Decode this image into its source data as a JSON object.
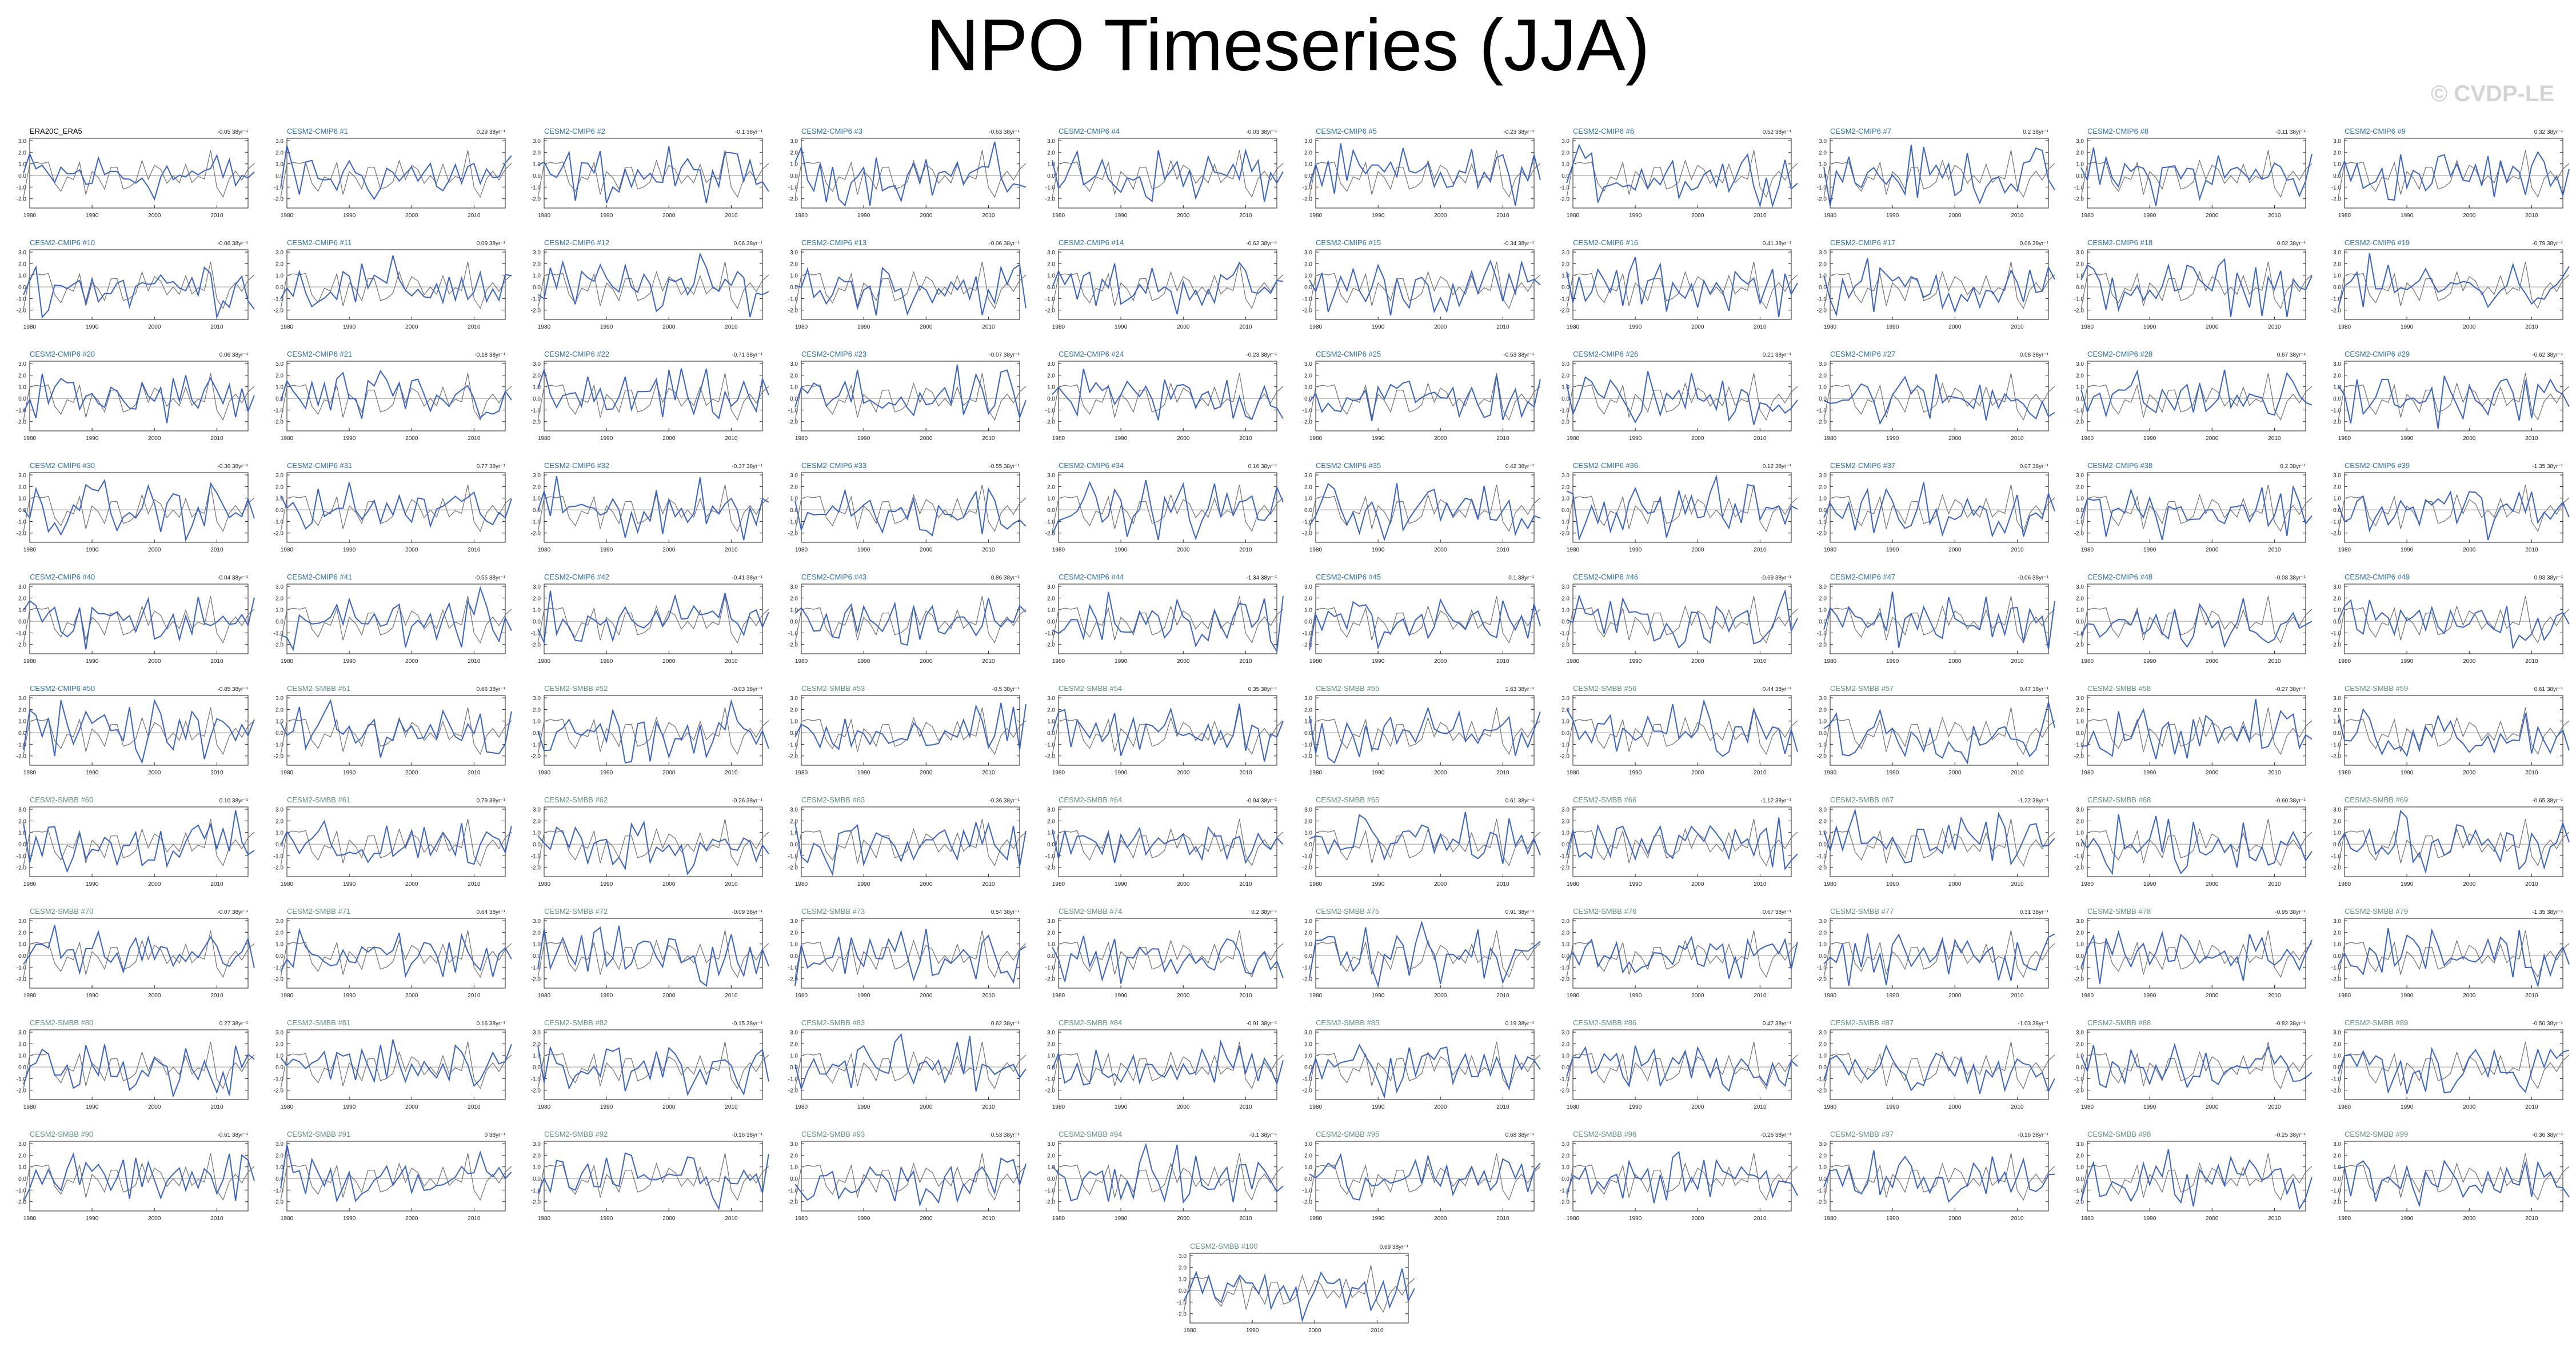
{
  "page": {
    "title": "NPO Timeseries (JJA)",
    "watermark": "© CVDP-LE"
  },
  "style": {
    "model_color": "#3a63c8",
    "obs_color": "#6e6e6e",
    "cmip6_label_color": "#2a6fb0",
    "smbb_label_color": "#5f8f88",
    "obs_label_color": "#000000"
  },
  "chart_data": {
    "type": "line",
    "xlim": [
      1980,
      2015
    ],
    "x_ticks": [
      "1980",
      "1990",
      "2000",
      "2010"
    ],
    "y_ticks": [
      "-2.0",
      "-1.0",
      "0.0",
      "1.0",
      "2.0",
      "3.0"
    ],
    "grid": false,
    "panels": [
      {
        "label": "ERA20C_ERA5",
        "trend": "-0.05 38yr⁻¹",
        "group": "obs"
      },
      {
        "label": "CESM2-CMIP6 #1",
        "trend": "0.29 38yr⁻¹",
        "group": "cmip6"
      },
      {
        "label": "CESM2-CMIP6 #2",
        "trend": "-0.1 38yr⁻¹",
        "group": "cmip6"
      },
      {
        "label": "CESM2-CMIP6 #3",
        "trend": "-0.63 38yr⁻¹",
        "group": "cmip6"
      },
      {
        "label": "CESM2-CMIP6 #4",
        "trend": "-0.03 38yr⁻¹",
        "group": "cmip6"
      },
      {
        "label": "CESM2-CMIP6 #5",
        "trend": "-0.23 38yr⁻¹",
        "group": "cmip6"
      },
      {
        "label": "CESM2-CMIP6 #6",
        "trend": "0.52 38yr⁻¹",
        "group": "cmip6"
      },
      {
        "label": "CESM2-CMIP6 #7",
        "trend": "0.2 38yr⁻¹",
        "group": "cmip6"
      },
      {
        "label": "CESM2-CMIP6 #8",
        "trend": "-0.11 38yr⁻¹",
        "group": "cmip6"
      },
      {
        "label": "CESM2-CMIP6 #9",
        "trend": "0.32 38yr⁻¹",
        "group": "cmip6"
      },
      {
        "label": "CESM2-CMIP6 #10",
        "trend": "-0.06 38yr⁻¹",
        "group": "cmip6"
      },
      {
        "label": "CESM2-CMIP6 #11",
        "trend": "0.09 38yr⁻¹",
        "group": "cmip6"
      },
      {
        "label": "CESM2-CMIP6 #12",
        "trend": "0.06 38yr⁻¹",
        "group": "cmip6"
      },
      {
        "label": "CESM2-CMIP6 #13",
        "trend": "-0.06 38yr⁻¹",
        "group": "cmip6"
      },
      {
        "label": "CESM2-CMIP6 #14",
        "trend": "-0.62 38yr⁻¹",
        "group": "cmip6"
      },
      {
        "label": "CESM2-CMIP6 #15",
        "trend": "-0.34 38yr⁻¹",
        "group": "cmip6"
      },
      {
        "label": "CESM2-CMIP6 #16",
        "trend": "0.41 38yr⁻¹",
        "group": "cmip6"
      },
      {
        "label": "CESM2-CMIP6 #17",
        "trend": "0.06 38yr⁻¹",
        "group": "cmip6"
      },
      {
        "label": "CESM2-CMIP6 #18",
        "trend": "0.02 38yr⁻¹",
        "group": "cmip6"
      },
      {
        "label": "CESM2-CMIP6 #19",
        "trend": "-0.79 38yr⁻¹",
        "group": "cmip6"
      },
      {
        "label": "CESM2-CMIP6 #20",
        "trend": "0.06 38yr⁻¹",
        "group": "cmip6"
      },
      {
        "label": "CESM2-CMIP6 #21",
        "trend": "-0.18 38yr⁻¹",
        "group": "cmip6"
      },
      {
        "label": "CESM2-CMIP6 #22",
        "trend": "-0.71 38yr⁻¹",
        "group": "cmip6"
      },
      {
        "label": "CESM2-CMIP6 #23",
        "trend": "-0.07 38yr⁻¹",
        "group": "cmip6"
      },
      {
        "label": "CESM2-CMIP6 #24",
        "trend": "-0.23 38yr⁻¹",
        "group": "cmip6"
      },
      {
        "label": "CESM2-CMIP6 #25",
        "trend": "-0.53 38yr⁻¹",
        "group": "cmip6"
      },
      {
        "label": "CESM2-CMIP6 #26",
        "trend": "0.21 38yr⁻¹",
        "group": "cmip6"
      },
      {
        "label": "CESM2-CMIP6 #27",
        "trend": "0.08 38yr⁻¹",
        "group": "cmip6"
      },
      {
        "label": "CESM2-CMIP6 #28",
        "trend": "0.67 38yr⁻¹",
        "group": "cmip6"
      },
      {
        "label": "CESM2-CMIP6 #29",
        "trend": "-0.62 38yr⁻¹",
        "group": "cmip6"
      },
      {
        "label": "CESM2-CMIP6 #30",
        "trend": "-0.36 38yr⁻¹",
        "group": "cmip6"
      },
      {
        "label": "CESM2-CMIP6 #31",
        "trend": "0.77 38yr⁻¹",
        "group": "cmip6"
      },
      {
        "label": "CESM2-CMIP6 #32",
        "trend": "-0.37 38yr⁻¹",
        "group": "cmip6"
      },
      {
        "label": "CESM2-CMIP6 #33",
        "trend": "-0.55 38yr⁻¹",
        "group": "cmip6"
      },
      {
        "label": "CESM2-CMIP6 #34",
        "trend": "0.16 38yr⁻¹",
        "group": "cmip6"
      },
      {
        "label": "CESM2-CMIP6 #35",
        "trend": "0.42 38yr⁻¹",
        "group": "cmip6"
      },
      {
        "label": "CESM2-CMIP6 #36",
        "trend": "0.12 38yr⁻¹",
        "group": "cmip6"
      },
      {
        "label": "CESM2-CMIP6 #37",
        "trend": "0.07 38yr⁻¹",
        "group": "cmip6"
      },
      {
        "label": "CESM2-CMIP6 #38",
        "trend": "0.2 38yr⁻¹",
        "group": "cmip6"
      },
      {
        "label": "CESM2-CMIP6 #39",
        "trend": "-1.35 38yr⁻¹",
        "group": "cmip6"
      },
      {
        "label": "CESM2-CMIP6 #40",
        "trend": "-0.04 38yr⁻¹",
        "group": "cmip6"
      },
      {
        "label": "CESM2-CMIP6 #41",
        "trend": "-0.55 38yr⁻¹",
        "group": "cmip6"
      },
      {
        "label": "CESM2-CMIP6 #42",
        "trend": "-0.41 38yr⁻¹",
        "group": "cmip6"
      },
      {
        "label": "CESM2-CMIP6 #43",
        "trend": "0.86 38yr⁻¹",
        "group": "cmip6"
      },
      {
        "label": "CESM2-CMIP6 #44",
        "trend": "-1.34 38yr⁻¹",
        "group": "cmip6"
      },
      {
        "label": "CESM2-CMIP6 #45",
        "trend": "0.1 38yr⁻¹",
        "group": "cmip6"
      },
      {
        "label": "CESM2-CMIP6 #46",
        "trend": "-0.69 38yr⁻¹",
        "group": "cmip6"
      },
      {
        "label": "CESM2-CMIP6 #47",
        "trend": "-0.06 38yr⁻¹",
        "group": "cmip6"
      },
      {
        "label": "CESM2-CMIP6 #48",
        "trend": "-0.08 38yr⁻¹",
        "group": "cmip6"
      },
      {
        "label": "CESM2-CMIP6 #49",
        "trend": "0.93 38yr⁻¹",
        "group": "cmip6"
      },
      {
        "label": "CESM2-CMIP6 #50",
        "trend": "-0.85 38yr⁻¹",
        "group": "cmip6"
      },
      {
        "label": "CESM2-SMBB #51",
        "trend": "0.66 38yr⁻¹",
        "group": "smbb"
      },
      {
        "label": "CESM2-SMBB #52",
        "trend": "-0.03 38yr⁻¹",
        "group": "smbb"
      },
      {
        "label": "CESM2-SMBB #53",
        "trend": "-0.5 38yr⁻¹",
        "group": "smbb"
      },
      {
        "label": "CESM2-SMBB #54",
        "trend": "0.35 38yr⁻¹",
        "group": "smbb"
      },
      {
        "label": "CESM2-SMBB #55",
        "trend": "1.63 38yr⁻¹",
        "group": "smbb"
      },
      {
        "label": "CESM2-SMBB #56",
        "trend": "0.44 38yr⁻¹",
        "group": "smbb"
      },
      {
        "label": "CESM2-SMBB #57",
        "trend": "0.47 38yr⁻¹",
        "group": "smbb"
      },
      {
        "label": "CESM2-SMBB #58",
        "trend": "-0.27 38yr⁻¹",
        "group": "smbb"
      },
      {
        "label": "CESM2-SMBB #59",
        "trend": "0.61 38yr⁻¹",
        "group": "smbb"
      },
      {
        "label": "CESM2-SMBB #60",
        "trend": "0.10 38yr⁻¹",
        "group": "smbb"
      },
      {
        "label": "CESM2-SMBB #61",
        "trend": "0.79 38yr⁻¹",
        "group": "smbb"
      },
      {
        "label": "CESM2-SMBB #62",
        "trend": "-0.26 38yr⁻¹",
        "group": "smbb"
      },
      {
        "label": "CESM2-SMBB #63",
        "trend": "-0.36 38yr⁻¹",
        "group": "smbb"
      },
      {
        "label": "CESM2-SMBB #64",
        "trend": "-0.94 38yr⁻¹",
        "group": "smbb"
      },
      {
        "label": "CESM2-SMBB #65",
        "trend": "0.61 38yr⁻¹",
        "group": "smbb"
      },
      {
        "label": "CESM2-SMBB #66",
        "trend": "-1.12 38yr⁻¹",
        "group": "smbb"
      },
      {
        "label": "CESM2-SMBB #67",
        "trend": "-1.22 38yr⁻¹",
        "group": "smbb"
      },
      {
        "label": "CESM2-SMBB #68",
        "trend": "-0.60 38yr⁻¹",
        "group": "smbb"
      },
      {
        "label": "CESM2-SMBB #69",
        "trend": "-0.65 38yr⁻¹",
        "group": "smbb"
      },
      {
        "label": "CESM2-SMBB #70",
        "trend": "-0.07 38yr⁻¹",
        "group": "smbb"
      },
      {
        "label": "CESM2-SMBB #71",
        "trend": "0.64 38yr⁻¹",
        "group": "smbb"
      },
      {
        "label": "CESM2-SMBB #72",
        "trend": "-0.09 38yr⁻¹",
        "group": "smbb"
      },
      {
        "label": "CESM2-SMBB #73",
        "trend": "0.54 38yr⁻¹",
        "group": "smbb"
      },
      {
        "label": "CESM2-SMBB #74",
        "trend": "0.2 38yr⁻¹",
        "group": "smbb"
      },
      {
        "label": "CESM2-SMBB #75",
        "trend": "0.91 38yr⁻¹",
        "group": "smbb"
      },
      {
        "label": "CESM2-SMBB #76",
        "trend": "0.67 38yr⁻¹",
        "group": "smbb"
      },
      {
        "label": "CESM2-SMBB #77",
        "trend": "0.31 38yr⁻¹",
        "group": "smbb"
      },
      {
        "label": "CESM2-SMBB #78",
        "trend": "-0.95 38yr⁻¹",
        "group": "smbb"
      },
      {
        "label": "CESM2-SMBB #79",
        "trend": "-1.35 38yr⁻¹",
        "group": "smbb"
      },
      {
        "label": "CESM2-SMBB #80",
        "trend": "0.27 38yr⁻¹",
        "group": "smbb"
      },
      {
        "label": "CESM2-SMBB #81",
        "trend": "0.16 38yr⁻¹",
        "group": "smbb"
      },
      {
        "label": "CESM2-SMBB #82",
        "trend": "-0.15 38yr⁻¹",
        "group": "smbb"
      },
      {
        "label": "CESM2-SMBB #83",
        "trend": "0.62 38yr⁻¹",
        "group": "smbb"
      },
      {
        "label": "CESM2-SMBB #84",
        "trend": "-0.91 38yr⁻¹",
        "group": "smbb"
      },
      {
        "label": "CESM2-SMBB #85",
        "trend": "0.19 38yr⁻¹",
        "group": "smbb"
      },
      {
        "label": "CESM2-SMBB #86",
        "trend": "0.47 38yr⁻¹",
        "group": "smbb"
      },
      {
        "label": "CESM2-SMBB #87",
        "trend": "-1.03 38yr⁻¹",
        "group": "smbb"
      },
      {
        "label": "CESM2-SMBB #88",
        "trend": "-0.82 38yr⁻¹",
        "group": "smbb"
      },
      {
        "label": "CESM2-SMBB #89",
        "trend": "-0.50 38yr⁻¹",
        "group": "smbb"
      },
      {
        "label": "CESM2-SMBB #90",
        "trend": "-0.61 38yr⁻¹",
        "group": "smbb"
      },
      {
        "label": "CESM2-SMBB #91",
        "trend": "0 38yr⁻¹",
        "group": "smbb"
      },
      {
        "label": "CESM2-SMBB #92",
        "trend": "-0.16 38yr⁻¹",
        "group": "smbb"
      },
      {
        "label": "CESM2-SMBB #93",
        "trend": "0.53 38yr⁻¹",
        "group": "smbb"
      },
      {
        "label": "CESM2-SMBB #94",
        "trend": "-0.1 38yr⁻¹",
        "group": "smbb"
      },
      {
        "label": "CESM2-SMBB #95",
        "trend": "0.68 38yr⁻¹",
        "group": "smbb"
      },
      {
        "label": "CESM2-SMBB #96",
        "trend": "-0.26 38yr⁻¹",
        "group": "smbb"
      },
      {
        "label": "CESM2-SMBB #97",
        "trend": "-0.16 38yr⁻¹",
        "group": "smbb"
      },
      {
        "label": "CESM2-SMBB #98",
        "trend": "-0.25 38yr⁻¹",
        "group": "smbb"
      },
      {
        "label": "CESM2-SMBB #99",
        "trend": "-0.36 38yr⁻¹",
        "group": "smbb"
      },
      {
        "label": "CESM2-SMBB #100",
        "trend": "0.69 38yr⁻¹",
        "group": "smbb"
      }
    ]
  }
}
